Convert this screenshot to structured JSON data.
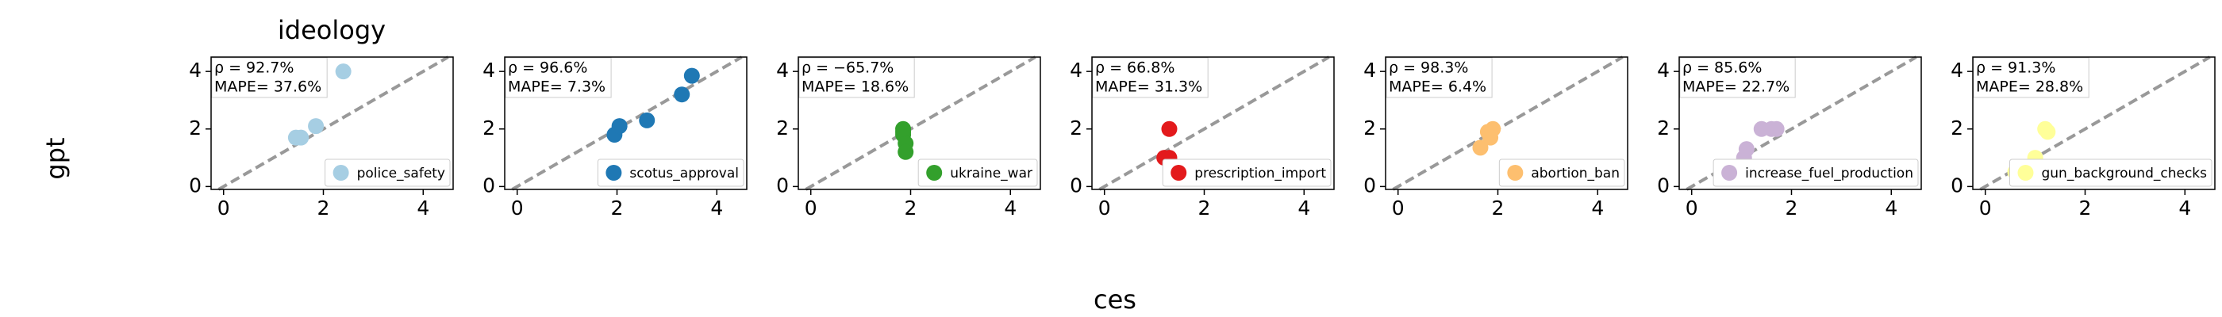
{
  "figure": {
    "title": "ideology",
    "x_label": "ces",
    "y_label": "gpt"
  },
  "chart_data": [
    {
      "type": "scatter",
      "annotations": [
        "ρ = 92.7%",
        "MAPE= 37.6%"
      ],
      "xlim": [
        -0.25,
        4.6
      ],
      "ylim": [
        -0.1,
        4.5
      ],
      "xticks": [
        0,
        2,
        4
      ],
      "yticks": [
        0,
        2,
        4
      ],
      "series": [
        {
          "name": "police_safety",
          "color": "#a6cee3",
          "x": [
            1.45,
            1.55,
            1.85,
            2.4
          ],
          "values": [
            1.7,
            1.7,
            2.1,
            4.0
          ]
        }
      ]
    },
    {
      "type": "scatter",
      "annotations": [
        "ρ = 96.6%",
        "MAPE= 7.3%"
      ],
      "xlim": [
        -0.25,
        4.6
      ],
      "ylim": [
        -0.1,
        4.5
      ],
      "xticks": [
        0,
        2,
        4
      ],
      "yticks": [
        0,
        2,
        4
      ],
      "series": [
        {
          "name": "scotus_approval",
          "color": "#1f78b4",
          "x": [
            1.95,
            2.05,
            2.6,
            3.3,
            3.5
          ],
          "values": [
            1.8,
            2.1,
            2.3,
            3.2,
            3.85
          ]
        }
      ]
    },
    {
      "type": "scatter",
      "annotations": [
        "ρ = −65.7%",
        "MAPE= 18.6%"
      ],
      "xlim": [
        -0.25,
        4.6
      ],
      "ylim": [
        -0.1,
        4.5
      ],
      "xticks": [
        0,
        2,
        4
      ],
      "yticks": [
        0,
        2,
        4
      ],
      "series": [
        {
          "name": "ukraine_war",
          "color": "#33a02c",
          "x": [
            1.85,
            1.85,
            1.9,
            1.9,
            1.85
          ],
          "values": [
            1.9,
            1.8,
            1.5,
            1.2,
            2.0
          ]
        }
      ]
    },
    {
      "type": "scatter",
      "annotations": [
        "ρ = 66.8%",
        "MAPE= 31.3%"
      ],
      "xlim": [
        -0.25,
        4.6
      ],
      "ylim": [
        -0.1,
        4.5
      ],
      "xticks": [
        0,
        2,
        4
      ],
      "yticks": [
        0,
        2,
        4
      ],
      "series": [
        {
          "name": "prescription_import",
          "color": "#e31a1c",
          "x": [
            1.3,
            1.2,
            1.3,
            1.35
          ],
          "values": [
            2.0,
            1.0,
            1.0,
            0.5
          ]
        }
      ]
    },
    {
      "type": "scatter",
      "annotations": [
        "ρ = 98.3%",
        "MAPE= 6.4%"
      ],
      "xlim": [
        -0.25,
        4.6
      ],
      "ylim": [
        -0.1,
        4.5
      ],
      "xticks": [
        0,
        2,
        4
      ],
      "yticks": [
        0,
        2,
        4
      ],
      "series": [
        {
          "name": "abortion_ban",
          "color": "#fdbf6f",
          "x": [
            1.65,
            1.8,
            1.9,
            1.85
          ],
          "values": [
            1.35,
            1.9,
            2.0,
            1.7
          ]
        }
      ]
    },
    {
      "type": "scatter",
      "annotations": [
        "ρ = 85.6%",
        "MAPE= 22.7%"
      ],
      "xlim": [
        -0.25,
        4.6
      ],
      "ylim": [
        -0.1,
        4.5
      ],
      "xticks": [
        0,
        2,
        4
      ],
      "yticks": [
        0,
        2,
        4
      ],
      "series": [
        {
          "name": "increase_fuel_production",
          "color": "#cab2d6",
          "x": [
            0.6,
            1.05,
            1.1,
            1.4,
            1.6,
            1.7
          ],
          "values": [
            0.5,
            1.0,
            1.3,
            2.0,
            2.0,
            2.0
          ]
        }
      ]
    },
    {
      "type": "scatter",
      "annotations": [
        "ρ = 91.3%",
        "MAPE= 28.8%"
      ],
      "xlim": [
        -0.25,
        4.6
      ],
      "ylim": [
        -0.1,
        4.5
      ],
      "xticks": [
        0,
        2,
        4
      ],
      "yticks": [
        0,
        2,
        4
      ],
      "series": [
        {
          "name": "gun_background_checks",
          "color": "#ffff99",
          "x": [
            0.6,
            1.0,
            1.2,
            1.25
          ],
          "values": [
            0.5,
            1.0,
            2.0,
            1.9
          ]
        }
      ]
    }
  ]
}
